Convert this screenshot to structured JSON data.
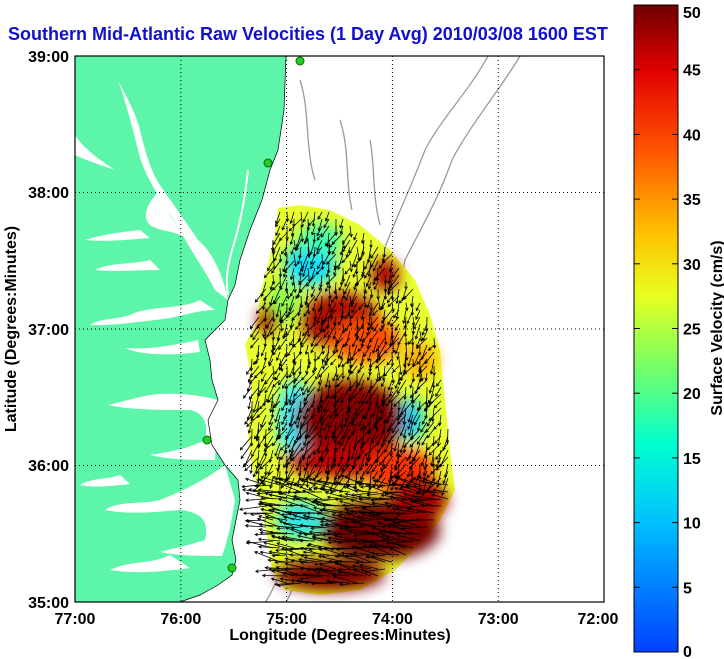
{
  "map": {
    "title": "Southern Mid-Atlantic Raw Velocities (1 Day Avg) 2010/03/08 1600 EST",
    "x_axis_label": "Longitude (Degrees:Minutes)",
    "y_axis_label": "Latitude (Degrees:Minutes)",
    "x_ticks": [
      "77:00",
      "76:00",
      "75:00",
      "74:00",
      "73:00",
      "72:00"
    ],
    "y_ticks": [
      "39:00",
      "38:00",
      "37:00",
      "36:00",
      "35:00"
    ],
    "colorbar": {
      "label": "Surface Velocity (cm/s)",
      "ticks": [
        "50",
        "45",
        "40",
        "35",
        "30",
        "25",
        "20",
        "15",
        "10",
        "5",
        "0"
      ],
      "min": 0,
      "max": 50,
      "colormap": "jet"
    },
    "land_color": "#5cf5a9",
    "water_color": "#ffffff",
    "station_color": "#22cc22",
    "grid": "dotted"
  }
}
